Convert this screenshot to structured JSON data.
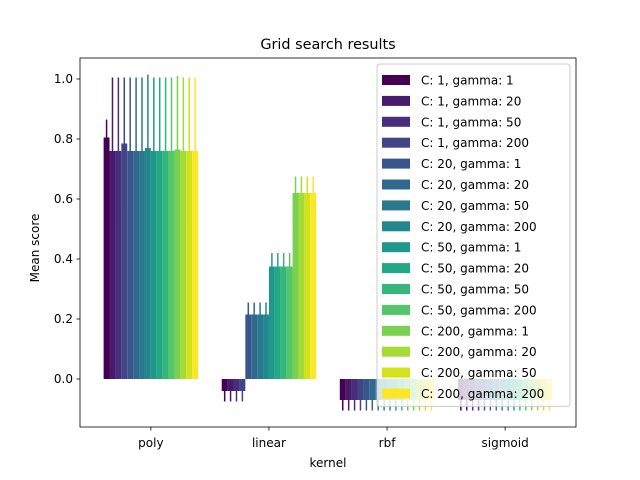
{
  "chart_data": {
    "type": "bar",
    "title": "Grid search results",
    "xlabel": "kernel",
    "ylabel": "Mean score",
    "ylim": [
      -0.16,
      1.07
    ],
    "yticks": [
      0.0,
      0.2,
      0.4,
      0.6,
      0.8,
      1.0
    ],
    "ytick_labels": [
      "0.0",
      "0.2",
      "0.4",
      "0.6",
      "0.8",
      "1.0"
    ],
    "categories": [
      "poly",
      "linear",
      "rbf",
      "sigmoid"
    ],
    "legend_position": "top-right",
    "error_bars": true,
    "series": [
      {
        "name": "C: 1, gamma: 1",
        "color": "#440154",
        "values": [
          0.805,
          -0.04,
          -0.07,
          -0.07
        ],
        "errors": [
          0.06,
          0.035,
          0.035,
          0.035
        ]
      },
      {
        "name": "C: 1, gamma: 20",
        "color": "#481a6c",
        "values": [
          0.76,
          -0.04,
          -0.07,
          -0.07
        ],
        "errors": [
          0.245,
          0.035,
          0.035,
          0.035
        ]
      },
      {
        "name": "C: 1, gamma: 50",
        "color": "#472f7d",
        "values": [
          0.76,
          -0.04,
          -0.07,
          -0.07
        ],
        "errors": [
          0.245,
          0.035,
          0.035,
          0.035
        ]
      },
      {
        "name": "C: 1, gamma: 200",
        "color": "#414487",
        "values": [
          0.785,
          -0.04,
          -0.07,
          -0.07
        ],
        "errors": [
          0.22,
          0.035,
          0.035,
          0.035
        ]
      },
      {
        "name": "C: 20, gamma: 1",
        "color": "#39568c",
        "values": [
          0.76,
          0.215,
          -0.07,
          -0.07
        ],
        "errors": [
          0.245,
          0.04,
          0.035,
          0.035
        ]
      },
      {
        "name": "C: 20, gamma: 20",
        "color": "#31688e",
        "values": [
          0.76,
          0.215,
          -0.07,
          -0.07
        ],
        "errors": [
          0.245,
          0.04,
          0.035,
          0.035
        ]
      },
      {
        "name": "C: 20, gamma: 50",
        "color": "#2a788e",
        "values": [
          0.76,
          0.215,
          -0.07,
          -0.07
        ],
        "errors": [
          0.245,
          0.04,
          0.035,
          0.035
        ]
      },
      {
        "name": "C: 20, gamma: 200",
        "color": "#23888e",
        "values": [
          0.77,
          0.215,
          -0.07,
          -0.07
        ],
        "errors": [
          0.245,
          0.04,
          0.035,
          0.035
        ]
      },
      {
        "name": "C: 50, gamma: 1",
        "color": "#1f988b",
        "values": [
          0.76,
          0.375,
          -0.07,
          -0.07
        ],
        "errors": [
          0.245,
          0.045,
          0.035,
          0.035
        ]
      },
      {
        "name": "C: 50, gamma: 20",
        "color": "#22a884",
        "values": [
          0.76,
          0.375,
          -0.07,
          -0.07
        ],
        "errors": [
          0.245,
          0.045,
          0.035,
          0.035
        ]
      },
      {
        "name": "C: 50, gamma: 50",
        "color": "#35b779",
        "values": [
          0.76,
          0.375,
          -0.07,
          -0.07
        ],
        "errors": [
          0.245,
          0.045,
          0.035,
          0.035
        ]
      },
      {
        "name": "C: 50, gamma: 200",
        "color": "#54c568",
        "values": [
          0.76,
          0.375,
          -0.07,
          -0.07
        ],
        "errors": [
          0.245,
          0.045,
          0.035,
          0.035
        ]
      },
      {
        "name": "C: 200, gamma: 1",
        "color": "#7ad151",
        "values": [
          0.765,
          0.62,
          -0.07,
          -0.07
        ],
        "errors": [
          0.245,
          0.055,
          0.035,
          0.035
        ]
      },
      {
        "name": "C: 200, gamma: 20",
        "color": "#a5db36",
        "values": [
          0.76,
          0.62,
          -0.07,
          -0.07
        ],
        "errors": [
          0.245,
          0.055,
          0.035,
          0.035
        ]
      },
      {
        "name": "C: 200, gamma: 50",
        "color": "#d2e21b",
        "values": [
          0.76,
          0.62,
          -0.07,
          -0.07
        ],
        "errors": [
          0.245,
          0.055,
          0.035,
          0.035
        ]
      },
      {
        "name": "C: 200, gamma: 200",
        "color": "#fde725",
        "values": [
          0.76,
          0.62,
          -0.07,
          -0.07
        ],
        "errors": [
          0.245,
          0.055,
          0.035,
          0.035
        ]
      }
    ]
  }
}
